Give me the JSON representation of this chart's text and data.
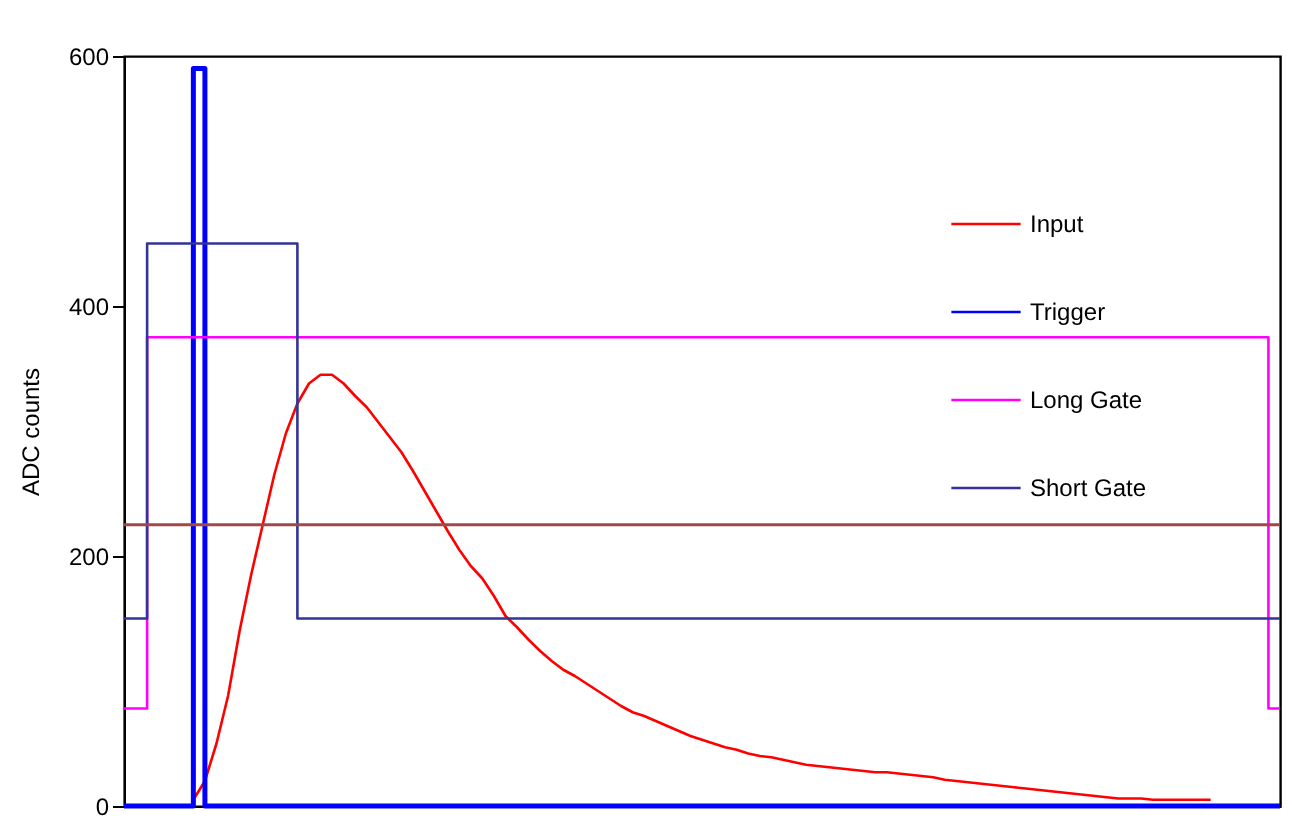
{
  "chart_data": {
    "type": "line",
    "ylabel": "ADC counts",
    "categories": [
      null,
      null,
      null,
      null,
      null,
      null,
      null,
      null,
      null,
      null,
      null,
      null,
      null,
      null,
      null,
      null,
      null,
      null,
      null,
      null,
      null,
      null,
      null,
      null,
      null,
      null,
      null,
      null,
      null,
      null,
      null,
      null,
      null,
      null,
      null,
      null,
      null,
      null,
      null,
      null,
      null,
      null,
      null,
      null,
      null,
      null,
      null,
      null,
      null,
      null,
      null,
      null,
      null,
      null,
      null,
      null,
      null,
      null,
      null,
      null,
      null,
      null,
      null,
      null,
      null,
      null,
      null,
      null,
      null,
      null,
      null,
      null,
      null,
      null,
      null,
      null,
      null,
      null,
      null,
      null,
      null,
      null,
      null,
      null,
      null,
      null,
      null,
      null,
      null,
      null,
      null,
      null,
      null,
      null,
      null,
      null,
      null,
      null,
      null,
      null,
      null
    ],
    "ylim": [
      0,
      600
    ],
    "yticks": [
      0,
      200,
      400,
      600
    ],
    "tick_labels": "y",
    "grid": false,
    "legend": "top right",
    "marker": "none",
    "ref_lines": [
      {
        "axis": "y",
        "value": 225,
        "color": "#a04848"
      }
    ],
    "series": [
      {
        "name": "Input",
        "color": "#ff0000",
        "values": [
          null,
          null,
          null,
          null,
          null,
          null,
          5,
          20,
          50,
          88,
          140,
          185,
          225,
          265,
          298,
          322,
          338,
          345,
          345,
          338,
          328,
          319,
          307,
          295,
          283,
          268,
          252,
          236,
          220,
          205,
          192,
          182,
          168,
          152,
          143,
          133,
          124,
          116,
          109,
          104,
          98,
          92,
          86,
          80,
          75,
          72,
          68,
          64,
          60,
          56,
          53,
          50,
          47,
          45,
          42,
          40,
          39,
          37,
          35,
          33,
          32,
          31,
          30,
          29,
          28,
          27,
          27,
          26,
          25,
          24,
          23,
          21,
          20,
          19,
          18,
          17,
          16,
          15,
          14,
          13,
          12,
          11,
          10,
          9,
          8,
          7,
          6,
          6,
          6,
          5,
          5,
          5,
          5,
          5,
          5,
          null,
          null,
          null,
          null,
          null,
          null
        ]
      },
      {
        "name": "Trigger",
        "type": "step",
        "color": "#0000ff",
        "values": [
          0,
          0,
          0,
          0,
          0,
          0,
          590,
          0,
          0,
          0,
          0,
          0,
          0,
          0,
          0,
          0,
          0,
          0,
          0,
          0,
          0,
          0,
          0,
          0,
          0,
          0,
          0,
          0,
          0,
          0,
          0,
          0,
          0,
          0,
          0,
          0,
          0,
          0,
          0,
          0,
          0,
          0,
          0,
          0,
          0,
          0,
          0,
          0,
          0,
          0,
          0,
          0,
          0,
          0,
          0,
          0,
          0,
          0,
          0,
          0,
          0,
          0,
          0,
          0,
          0,
          0,
          0,
          0,
          0,
          0,
          0,
          0,
          0,
          0,
          0,
          0,
          0,
          0,
          0,
          0,
          0,
          0,
          0,
          0,
          0,
          0,
          0,
          0,
          0,
          0,
          0,
          0,
          0,
          0,
          0,
          0,
          0,
          0,
          0,
          0,
          0
        ]
      },
      {
        "name": "Long Gate",
        "type": "step",
        "color": "#ff00ff",
        "values": [
          78,
          78,
          375,
          375,
          375,
          375,
          375,
          375,
          375,
          375,
          375,
          375,
          375,
          375,
          375,
          375,
          375,
          375,
          375,
          375,
          375,
          375,
          375,
          375,
          375,
          375,
          375,
          375,
          375,
          375,
          375,
          375,
          375,
          375,
          375,
          375,
          375,
          375,
          375,
          375,
          375,
          375,
          375,
          375,
          375,
          375,
          375,
          375,
          375,
          375,
          375,
          375,
          375,
          375,
          375,
          375,
          375,
          375,
          375,
          375,
          375,
          375,
          375,
          375,
          375,
          375,
          375,
          375,
          375,
          375,
          375,
          375,
          375,
          375,
          375,
          375,
          375,
          375,
          375,
          375,
          375,
          375,
          375,
          375,
          375,
          375,
          375,
          375,
          375,
          375,
          375,
          375,
          375,
          375,
          375,
          375,
          375,
          375,
          375,
          78,
          78
        ]
      },
      {
        "name": "Short Gate",
        "type": "step",
        "color": "#333399",
        "values": [
          150,
          150,
          450,
          450,
          450,
          450,
          450,
          450,
          450,
          450,
          450,
          450,
          450,
          450,
          450,
          150,
          150,
          150,
          150,
          150,
          150,
          150,
          150,
          150,
          150,
          150,
          150,
          150,
          150,
          150,
          150,
          150,
          150,
          150,
          150,
          150,
          150,
          150,
          150,
          150,
          150,
          150,
          150,
          150,
          150,
          150,
          150,
          150,
          150,
          150,
          150,
          150,
          150,
          150,
          150,
          150,
          150,
          150,
          150,
          150,
          150,
          150,
          150,
          150,
          150,
          150,
          150,
          150,
          150,
          150,
          150,
          150,
          150,
          150,
          150,
          150,
          150,
          150,
          150,
          150,
          150,
          150,
          150,
          150,
          150,
          150,
          150,
          150,
          150,
          150,
          150,
          150,
          150,
          150,
          150,
          150,
          150,
          150,
          150,
          150,
          150
        ]
      }
    ]
  }
}
